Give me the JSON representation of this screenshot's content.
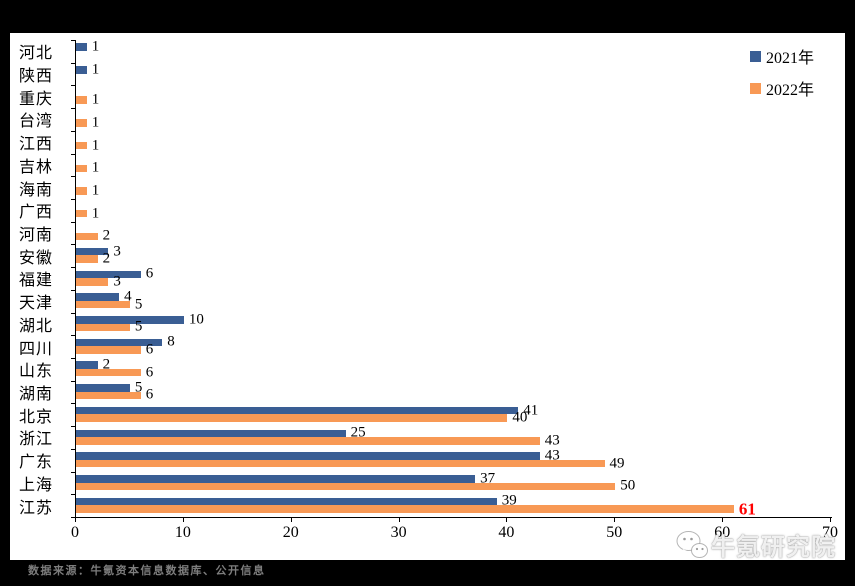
{
  "chart_data": {
    "type": "bar",
    "orientation": "horizontal",
    "categories": [
      "河北",
      "陕西",
      "重庆",
      "台湾",
      "江西",
      "吉林",
      "海南",
      "广西",
      "河南",
      "安徽",
      "福建",
      "天津",
      "湖北",
      "四川",
      "山东",
      "湖南",
      "北京",
      "浙江",
      "广东",
      "上海",
      "江苏"
    ],
    "series": [
      {
        "name": "2021年",
        "color": "#3A5E94",
        "values": [
          1,
          1,
          0,
          0,
          0,
          0,
          0,
          0,
          0,
          3,
          6,
          4,
          10,
          8,
          2,
          5,
          41,
          25,
          43,
          37,
          39
        ]
      },
      {
        "name": "2022年",
        "color": "#F89955",
        "values": [
          0,
          0,
          1,
          1,
          1,
          1,
          1,
          1,
          2,
          2,
          3,
          5,
          5,
          6,
          6,
          6,
          40,
          43,
          49,
          50,
          61
        ]
      }
    ],
    "xlim": [
      0,
      70
    ],
    "x_ticks": [
      0,
      10,
      20,
      30,
      40,
      50,
      60,
      70
    ],
    "grid": false,
    "legend_position": "top-right",
    "data_labels": true,
    "highlight": {
      "series": "2022年",
      "category": "江苏",
      "value": 61,
      "color": "#FF0000"
    }
  },
  "legend": {
    "items": [
      {
        "label": "2021年",
        "color": "#3A5E94"
      },
      {
        "label": "2022年",
        "color": "#F89955"
      }
    ]
  },
  "watermark": {
    "text": "牛氪研究院"
  },
  "footer": {
    "source_text": "数据来源：牛氪资本信息数据库、公开信息"
  }
}
